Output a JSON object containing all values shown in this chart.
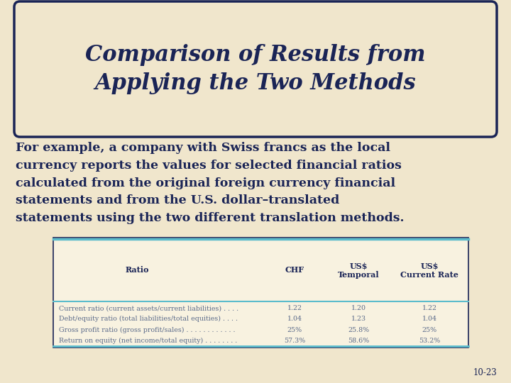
{
  "title_line1": "Comparison of Results from",
  "title_line2": "Applying the Two Methods",
  "body_text": "For example, a company with Swiss francs as the local\ncurrency reports the values for selected financial ratios\ncalculated from the original foreign currency financial\nstatements and from the U.S. dollar–translated\nstatements using the two different translation methods.",
  "bg_color": "#f0e6cc",
  "title_bg": "#f0e6cc",
  "title_border_color": "#1a2456",
  "title_text_color": "#1a2456",
  "body_text_color": "#1a2456",
  "table_header": [
    "Ratio",
    "CHF",
    "US$\nTemporal",
    "US$\nCurrent Rate"
  ],
  "table_rows": [
    [
      "Current ratio (current assets/current liabilities) . . . .",
      "1.22",
      "1.20",
      "1.22"
    ],
    [
      "Debt/equity ratio (total liabilities/total equities) . . . .",
      "1.04",
      "1.23",
      "1.04"
    ],
    [
      "Gross profit ratio (gross profit/sales) . . . . . . . . . . . .",
      "25%",
      "25.8%",
      "25%"
    ],
    [
      "Return on equity (net income/total equity) . . . . . . . .",
      "57.3%",
      "58.6%",
      "53.2%"
    ]
  ],
  "table_header_color": "#1a2456",
  "table_row_color": "#5a6a8a",
  "table_border_color": "#5bbccc",
  "table_outer_border": "#1a2456",
  "slide_number": "10-23"
}
